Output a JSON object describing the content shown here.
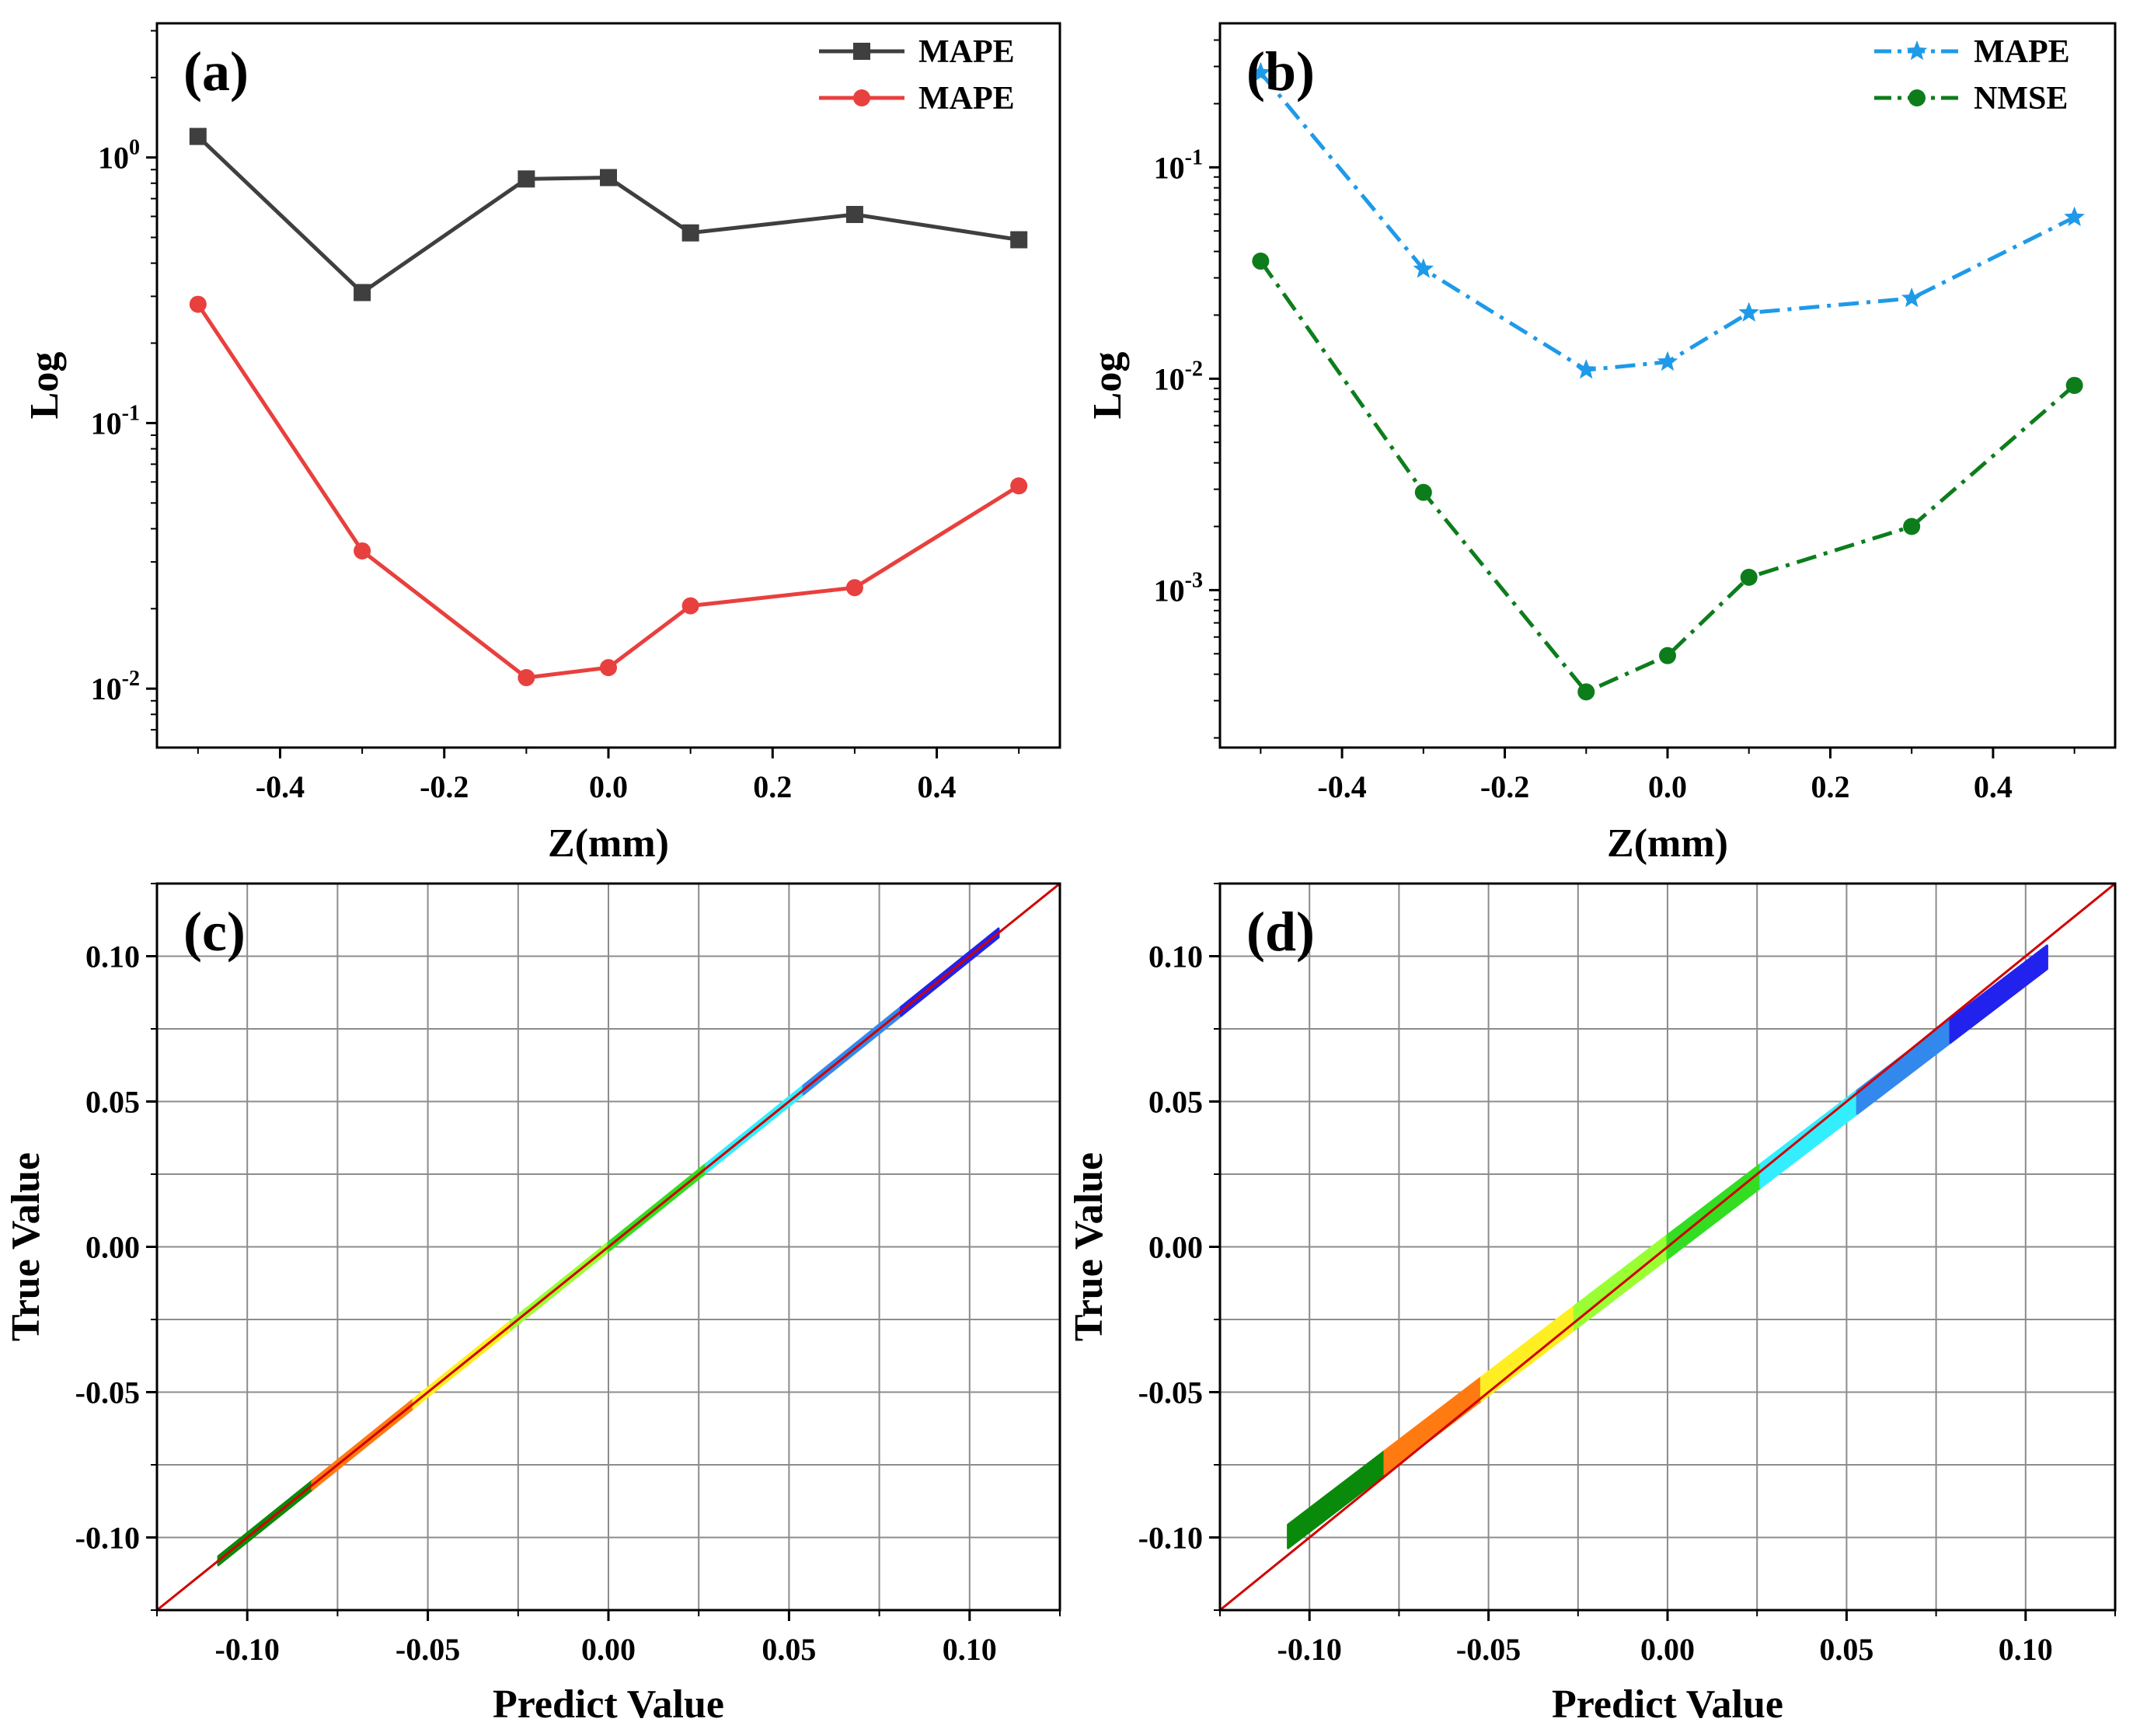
{
  "chart_data": [
    {
      "id": "a",
      "type": "line",
      "panel_label": "(a)",
      "xlabel": "Z(mm)",
      "ylabel": "Log",
      "yscale": "log",
      "xlim": [
        -0.55,
        0.55
      ],
      "ylim": [
        0.006,
        3.2
      ],
      "x_ticks": [
        -0.4,
        -0.2,
        0.0,
        0.2,
        0.4
      ],
      "x_tick_labels": [
        "-0.4",
        "-0.2",
        "0.0",
        "0.2",
        "0.4"
      ],
      "y_ticks": [
        1,
        0.1,
        0.01
      ],
      "y_tick_labels": [
        {
          "base": "10",
          "exp": "0"
        },
        {
          "base": "10",
          "exp": "-1"
        },
        {
          "base": "10",
          "exp": "-2"
        }
      ],
      "legend_position": "top-right",
      "series": [
        {
          "name": "MAPE",
          "color": "#3f3f3f",
          "marker": "square",
          "dash": "solid",
          "x": [
            -0.5,
            -0.3,
            -0.1,
            0.0,
            0.1,
            0.3,
            0.5
          ],
          "values": [
            1.2,
            0.31,
            0.83,
            0.84,
            0.52,
            0.61,
            0.49
          ]
        },
        {
          "name": "MAPE",
          "color": "#e8403e",
          "marker": "circle",
          "dash": "solid",
          "x": [
            -0.5,
            -0.3,
            -0.1,
            0.0,
            0.1,
            0.3,
            0.5
          ],
          "values": [
            0.28,
            0.033,
            0.011,
            0.012,
            0.0205,
            0.024,
            0.058
          ]
        }
      ]
    },
    {
      "id": "b",
      "type": "line",
      "panel_label": "(b)",
      "xlabel": "Z(mm)",
      "ylabel": "Log",
      "yscale": "log",
      "xlim": [
        -0.55,
        0.55
      ],
      "ylim": [
        0.00018,
        0.48
      ],
      "x_ticks": [
        -0.4,
        -0.2,
        0.0,
        0.2,
        0.4
      ],
      "x_tick_labels": [
        "-0.4",
        "-0.2",
        "0.0",
        "0.2",
        "0.4"
      ],
      "y_ticks": [
        0.1,
        0.01,
        0.001
      ],
      "y_tick_labels": [
        {
          "base": "10",
          "exp": "-1"
        },
        {
          "base": "10",
          "exp": "-2"
        },
        {
          "base": "10",
          "exp": "-3"
        }
      ],
      "legend_position": "top-right",
      "series": [
        {
          "name": "MAPE",
          "color": "#1e9ae8",
          "marker": "star",
          "dash": "dashdot",
          "x": [
            -0.5,
            -0.3,
            -0.1,
            0.0,
            0.1,
            0.3,
            0.5
          ],
          "values": [
            0.28,
            0.033,
            0.011,
            0.012,
            0.0205,
            0.024,
            0.058
          ]
        },
        {
          "name": "NMSE",
          "color": "#0d7d1c",
          "marker": "circle",
          "dash": "dashdot",
          "x": [
            -0.5,
            -0.3,
            -0.1,
            0.0,
            0.1,
            0.3,
            0.5
          ],
          "values": [
            0.036,
            0.0029,
            0.00033,
            0.00049,
            0.00115,
            0.002,
            0.0093
          ]
        }
      ]
    },
    {
      "id": "c",
      "type": "scatter",
      "panel_label": "(c)",
      "xlabel": "Predict Value",
      "ylabel": "True Value",
      "xlim": [
        -0.125,
        0.125
      ],
      "ylim": [
        -0.125,
        0.125
      ],
      "x_ticks": [
        -0.1,
        -0.05,
        0.0,
        0.05,
        0.1
      ],
      "x_tick_labels": [
        "-0.10",
        "-0.05",
        "0.00",
        "0.05",
        "0.10"
      ],
      "y_ticks": [
        -0.1,
        -0.05,
        0.0,
        0.05,
        0.1
      ],
      "y_tick_labels": [
        "-0.10",
        "-0.05",
        "0.00",
        "0.05",
        "0.10"
      ],
      "grid": true,
      "grid_step": 0.025,
      "reference_line": {
        "slope": 1,
        "intercept": 0,
        "color": "#d00000"
      },
      "segments": [
        {
          "pred_range": [
            -0.108,
            -0.082
          ],
          "slope": 1.0,
          "offset": 0.0,
          "spread": 0.0015,
          "color": "#0a8a0a"
        },
        {
          "pred_range": [
            -0.082,
            -0.054
          ],
          "slope": 1.0,
          "offset": 0.0,
          "spread": 0.0015,
          "color": "#ff7a10"
        },
        {
          "pred_range": [
            -0.054,
            -0.027
          ],
          "slope": 1.0,
          "offset": 0.0,
          "spread": 0.0015,
          "color": "#ffee22"
        },
        {
          "pred_range": [
            -0.027,
            0.0
          ],
          "slope": 1.0,
          "offset": 0.0,
          "spread": 0.0015,
          "color": "#99ff33"
        },
        {
          "pred_range": [
            0.0,
            0.027
          ],
          "slope": 1.0,
          "offset": 0.0,
          "spread": 0.0015,
          "color": "#33dd22"
        },
        {
          "pred_range": [
            0.027,
            0.054
          ],
          "slope": 1.0,
          "offset": 0.0,
          "spread": 0.0015,
          "color": "#33eeff"
        },
        {
          "pred_range": [
            0.054,
            0.081
          ],
          "slope": 1.0,
          "offset": 0.0,
          "spread": 0.0015,
          "color": "#3388ee"
        },
        {
          "pred_range": [
            0.081,
            0.108
          ],
          "slope": 1.0,
          "offset": 0.0,
          "spread": 0.0015,
          "color": "#2222ee"
        }
      ]
    },
    {
      "id": "d",
      "type": "scatter",
      "panel_label": "(d)",
      "xlabel": "Predict Value",
      "ylabel": "True Value",
      "xlim": [
        -0.125,
        0.125
      ],
      "ylim": [
        -0.125,
        0.125
      ],
      "x_ticks": [
        -0.1,
        -0.05,
        0.0,
        0.05,
        0.1
      ],
      "x_tick_labels": [
        "-0.10",
        "-0.05",
        "0.00",
        "0.05",
        "0.10"
      ],
      "y_ticks": [
        -0.1,
        -0.05,
        0.0,
        0.05,
        0.1
      ],
      "y_tick_labels": [
        "-0.10",
        "-0.05",
        "0.00",
        "0.05",
        "0.10"
      ],
      "grid": true,
      "grid_step": 0.025,
      "reference_line": {
        "slope": 1,
        "intercept": 0,
        "color": "#d00000"
      },
      "segments": [
        {
          "pred_range": [
            -0.106,
            -0.079
          ],
          "slope": 0.94,
          "offset": 0.0,
          "spread": 0.004,
          "color": "#0a8a0a"
        },
        {
          "pred_range": [
            -0.079,
            -0.052
          ],
          "slope": 0.94,
          "offset": 0.0,
          "spread": 0.004,
          "color": "#ff7a10"
        },
        {
          "pred_range": [
            -0.052,
            -0.026
          ],
          "slope": 0.94,
          "offset": 0.0,
          "spread": 0.004,
          "color": "#ffee22"
        },
        {
          "pred_range": [
            -0.026,
            0.0
          ],
          "slope": 0.94,
          "offset": 0.0,
          "spread": 0.004,
          "color": "#99ff33"
        },
        {
          "pred_range": [
            0.0,
            0.026
          ],
          "slope": 0.94,
          "offset": 0.0,
          "spread": 0.004,
          "color": "#33dd22"
        },
        {
          "pred_range": [
            0.026,
            0.053
          ],
          "slope": 0.94,
          "offset": 0.0,
          "spread": 0.004,
          "color": "#33eeff"
        },
        {
          "pred_range": [
            0.053,
            0.079
          ],
          "slope": 0.94,
          "offset": 0.0,
          "spread": 0.004,
          "color": "#3388ee"
        },
        {
          "pred_range": [
            0.079,
            0.106
          ],
          "slope": 0.94,
          "offset": 0.0,
          "spread": 0.004,
          "color": "#2222ee"
        }
      ]
    }
  ]
}
